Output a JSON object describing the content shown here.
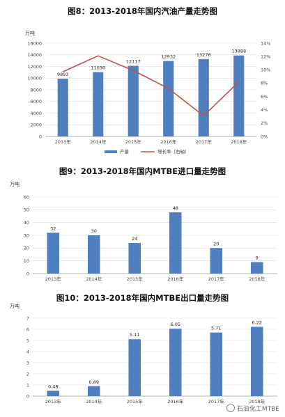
{
  "charts": [
    {
      "title": "图8：2013-2018年国内汽油产量走势图",
      "unit": "万吨"
    },
    {
      "title": "图9：2013-2018年国内MTBE进口量走势图",
      "unit": "万吨"
    },
    {
      "title": "图10：2013-2018年国内MTBE出口量走势图",
      "unit": "万吨"
    }
  ],
  "watermark": "石油化工MTBE",
  "colors": {
    "bar": "#4f7fbf",
    "line": "#c0504d",
    "axis": "#999999",
    "grid": "#d9d9d9"
  },
  "chart_data": [
    {
      "type": "bar",
      "title": "图8：2013-2018年国内汽油产量走势图",
      "ylabel": "万吨",
      "categories": [
        "2013年",
        "2014年",
        "2015年",
        "2016年",
        "2017年",
        "2018年"
      ],
      "series": [
        {
          "name": "产量",
          "type": "bar",
          "axis": "left",
          "values": [
            9893,
            11030,
            12117,
            12932,
            13276,
            13888
          ]
        },
        {
          "name": "增长率（右轴）",
          "type": "line",
          "axis": "right",
          "values": [
            9.7,
            12.1,
            9.9,
            7.2,
            3.1,
            8.2
          ]
        }
      ],
      "ylim": [
        0,
        16000
      ],
      "yticks": [
        "0",
        "2000",
        "4000",
        "6000",
        "8000",
        "10000",
        "12000",
        "14000",
        "16000"
      ],
      "y2lim": [
        0,
        14
      ],
      "y2ticks": [
        "0%",
        "2%",
        "4%",
        "6%",
        "8%",
        "10%",
        "12%",
        "14%"
      ],
      "data_labels": [
        "9893",
        "11030",
        "12117",
        "12932",
        "13276",
        "13888"
      ],
      "legend": "bottom",
      "grid": true
    },
    {
      "type": "bar",
      "title": "图9：2013-2018年国内MTBE进口量走势图",
      "ylabel": "万吨",
      "categories": [
        "2013年",
        "2014年",
        "2015年",
        "2016年",
        "2017年",
        "2018年"
      ],
      "values": [
        32,
        30,
        24,
        48,
        20,
        9
      ],
      "data_labels": [
        "32",
        "30",
        "24",
        "48",
        "20",
        "9"
      ],
      "ylim": [
        0,
        60
      ],
      "yticks": [
        "0",
        "10",
        "20",
        "30",
        "40",
        "50",
        "60"
      ],
      "grid": true
    },
    {
      "type": "bar",
      "title": "图10：2013-2018年国内MTBE出口量走势图",
      "ylabel": "万吨",
      "categories": [
        "2013年",
        "2014年",
        "2015年",
        "2016年",
        "2017年",
        "2018年"
      ],
      "values": [
        0.48,
        0.89,
        5.11,
        6.05,
        5.71,
        6.22
      ],
      "data_labels": [
        "0.48",
        "0.89",
        "5.11",
        "6.05",
        "5.71",
        "6.22"
      ],
      "ylim": [
        0,
        7
      ],
      "yticks": [
        "0",
        "1",
        "2",
        "3",
        "4",
        "5",
        "6",
        "7"
      ],
      "grid": true
    }
  ]
}
